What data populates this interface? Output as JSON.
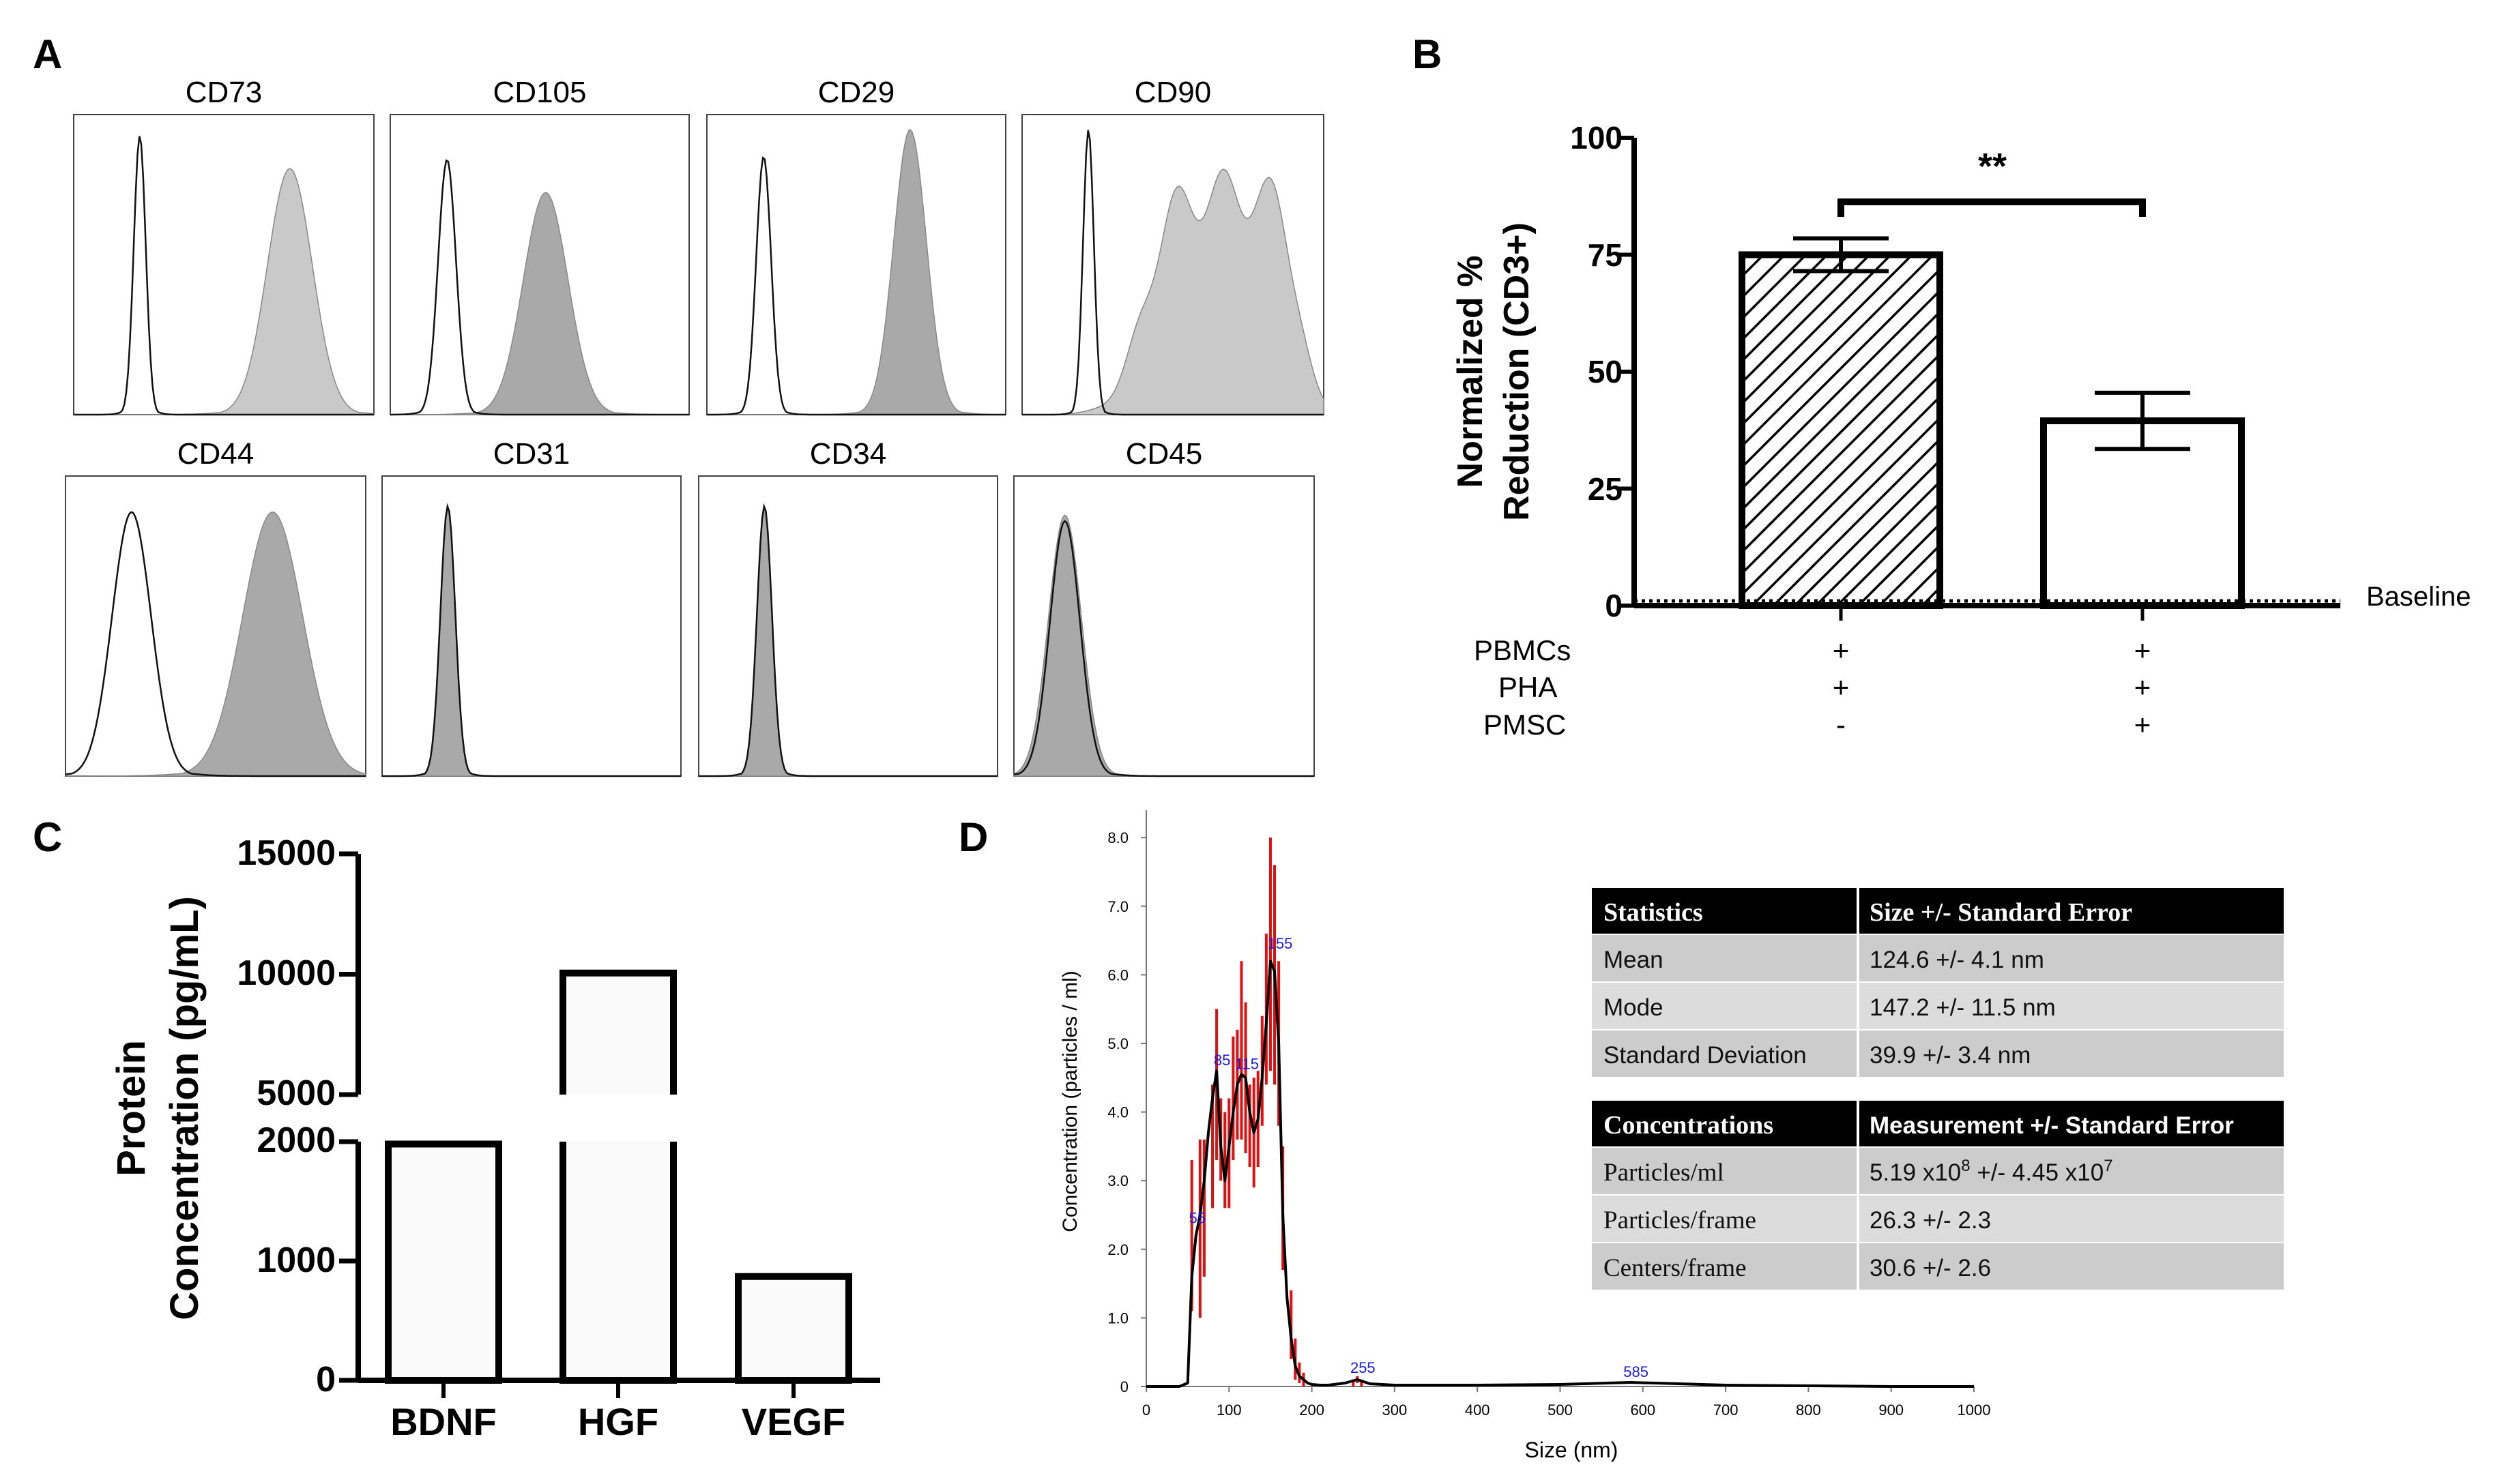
{
  "panels": {
    "a": "A",
    "b": "B",
    "c": "C",
    "d": "D"
  },
  "panel_a": {
    "markers_top": [
      "CD73",
      "CD105",
      "CD29",
      "CD90"
    ],
    "markers_bottom": [
      "CD44",
      "CD31",
      "CD34",
      "CD45"
    ],
    "fill_light": "#c9c9c9",
    "fill_dark": "#a9a9a9"
  },
  "panel_b": {
    "ylabel_line1": "Normalized %",
    "ylabel_line2": "Reduction (CD3+)",
    "yticks": [
      "100",
      "75",
      "50",
      "25",
      "0"
    ],
    "significance": "**",
    "baseline_label": "Baseline",
    "rows": [
      {
        "label": "PBMCs",
        "values": [
          "+",
          "+"
        ]
      },
      {
        "label": "PHA",
        "values": [
          "+",
          "+"
        ]
      },
      {
        "label": "PMSC",
        "values": [
          "-",
          "+"
        ]
      }
    ]
  },
  "panel_c": {
    "ylabel_line1": "Protein",
    "ylabel_line2": "Concentration (pg/mL)",
    "yticks_upper": [
      "15000",
      "10000",
      "5000"
    ],
    "yticks_lower": [
      "2000",
      "1000",
      "0"
    ],
    "categories": [
      "BDNF",
      "HGF",
      "VEGF"
    ]
  },
  "panel_d": {
    "xlabel": "Size (nm)",
    "ylabel": "Concentration (particles / ml)",
    "xticks": [
      "0",
      "100",
      "200",
      "300",
      "400",
      "500",
      "600",
      "700",
      "800",
      "900",
      "1000"
    ],
    "yticks": [
      "0",
      "1.0",
      "2.0",
      "3.0",
      "4.0",
      "5.0",
      "6.0",
      "7.0",
      "8.0"
    ],
    "peak_labels": [
      "55",
      "85",
      "115",
      "155",
      "255",
      "585"
    ],
    "table1": {
      "headers": [
        "Statistics",
        "Size +/- Standard  Error"
      ],
      "rows": [
        [
          "Mean",
          "124.6 +/- 4.1 nm"
        ],
        [
          "Mode",
          "147.2 +/- 11.5 nm"
        ],
        [
          "Standard Deviation",
          "39.9 +/- 3.4 nm"
        ]
      ]
    },
    "table2": {
      "headers": [
        "Concentrations",
        "Measurement +/- Standard Error"
      ],
      "rows": [
        [
          "Particles/ml",
          "5.19 x10",
          "8",
          " +/- 4.45 x10",
          "7"
        ],
        [
          "Particles/frame",
          "26.3 +/- 2.3"
        ],
        [
          "Centers/frame",
          "30.6 +/- 2.6"
        ]
      ]
    }
  },
  "chart_data": [
    {
      "type": "histogram",
      "panel": "A",
      "categories": [
        "CD73",
        "CD105",
        "CD29",
        "CD90",
        "CD44",
        "CD31",
        "CD34",
        "CD45"
      ]
    },
    {
      "type": "bar",
      "panel": "B",
      "categories": [
        "PBMCs+PHA",
        "PBMCs+PHA+PMSC"
      ],
      "values": [
        75,
        39.5
      ],
      "errors": [
        3.5,
        6
      ],
      "ylabel": "Normalized % Reduction (CD3+)",
      "ylim": [
        0,
        100
      ],
      "baseline": 1,
      "significance": "**"
    },
    {
      "type": "bar",
      "panel": "C",
      "categories": [
        "BDNF",
        "HGF",
        "VEGF"
      ],
      "values": [
        1980,
        10050,
        870
      ],
      "ylabel": "Protein Concentration (pg/mL)",
      "ylim": [
        0,
        15000
      ],
      "axis_break": [
        2000,
        5000
      ]
    },
    {
      "type": "line",
      "panel": "D",
      "xlabel": "Size (nm)",
      "ylabel": "Concentration (particles / ml)",
      "xlim": [
        0,
        1000
      ],
      "ylim": [
        0,
        8.3
      ],
      "x": [
        0,
        40,
        50,
        55,
        60,
        65,
        70,
        75,
        80,
        85,
        90,
        95,
        100,
        105,
        110,
        115,
        120,
        125,
        130,
        135,
        140,
        145,
        150,
        155,
        160,
        165,
        170,
        175,
        180,
        185,
        190,
        195,
        200,
        210,
        220,
        240,
        255,
        270,
        300,
        400,
        500,
        585,
        700,
        800,
        900,
        1000
      ],
      "y": [
        0,
        0,
        0.05,
        1.6,
        2.2,
        2.5,
        3.0,
        3.7,
        4.2,
        4.6,
        3.5,
        3.0,
        3.5,
        4.0,
        4.4,
        4.55,
        4.5,
        4.0,
        3.7,
        3.9,
        4.5,
        5.3,
        6.2,
        6.05,
        5.0,
        2.5,
        1.3,
        0.7,
        0.3,
        0.15,
        0.1,
        0.05,
        0.03,
        0.02,
        0.02,
        0.05,
        0.1,
        0.04,
        0.02,
        0.02,
        0.03,
        0.06,
        0.02,
        0.01,
        0.0,
        0.0
      ],
      "error_x": [
        55,
        65,
        70,
        80,
        85,
        90,
        95,
        100,
        105,
        110,
        115,
        120,
        125,
        130,
        135,
        140,
        145,
        150,
        155,
        160,
        165,
        175,
        180,
        185,
        190,
        250,
        255,
        260
      ],
      "error_y": [
        2.2,
        2.3,
        2.6,
        3.5,
        4.4,
        3.6,
        3.3,
        3.4,
        4.2,
        4.4,
        4.9,
        4.5,
        3.8,
        3.7,
        3.9,
        4.6,
        5.5,
        6.3,
        6.0,
        5.0,
        2.6,
        0.9,
        0.4,
        0.2,
        0.1,
        0.05,
        0.1,
        0.05
      ],
      "error_e": [
        1.1,
        1.3,
        1.0,
        0.9,
        1.1,
        0.6,
        0.7,
        0.8,
        0.9,
        0.8,
        1.3,
        1.1,
        0.6,
        0.8,
        0.7,
        0.8,
        1.1,
        1.7,
        1.6,
        1.2,
        0.9,
        0.5,
        0.3,
        0.15,
        0.1,
        0.05,
        0.05,
        0.05
      ],
      "peak_labels": [
        55,
        85,
        115,
        155,
        255,
        585
      ]
    }
  ]
}
